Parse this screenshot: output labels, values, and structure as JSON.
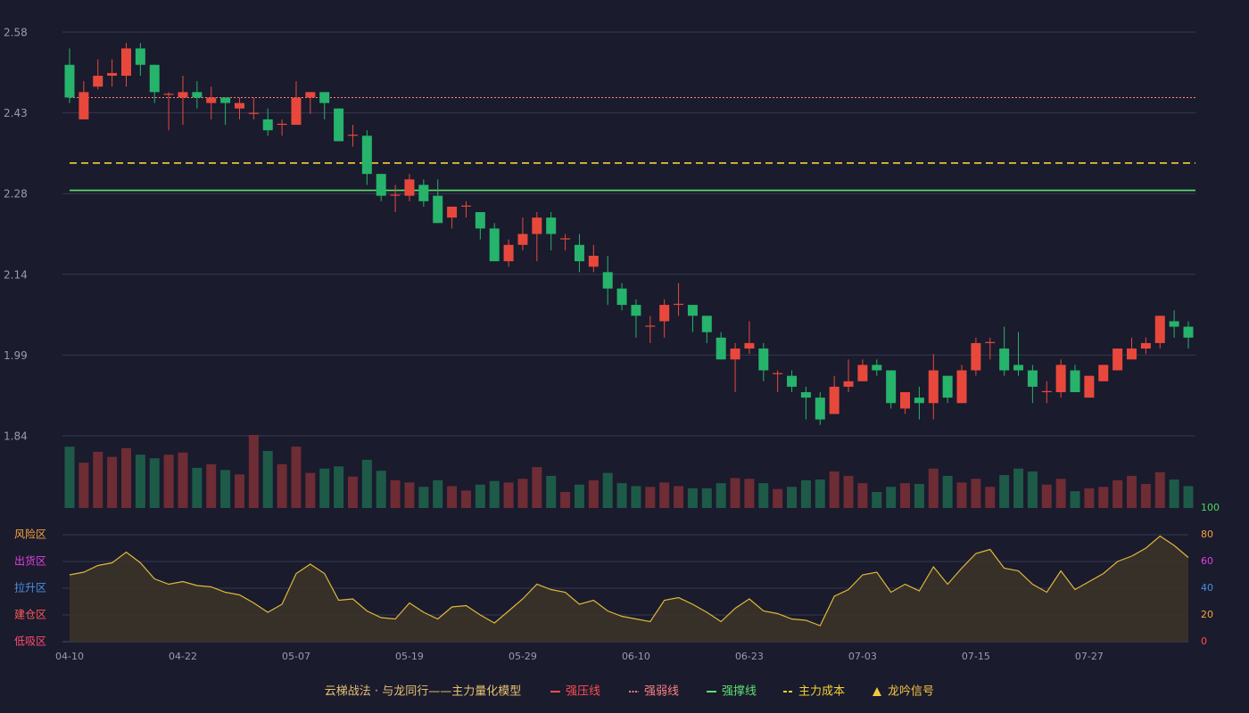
{
  "chart_data": [
    {
      "type": "candlestick",
      "title": "云梯战法 · 与龙同行——主力量化模型",
      "categories": [
        "04-10",
        null,
        null,
        null,
        null,
        null,
        null,
        null,
        "04-22",
        null,
        null,
        null,
        null,
        null,
        null,
        null,
        "05-07",
        null,
        null,
        null,
        null,
        null,
        null,
        null,
        "05-19",
        null,
        null,
        null,
        null,
        null,
        null,
        null,
        "05-29",
        null,
        null,
        null,
        null,
        null,
        null,
        null,
        "06-10",
        null,
        null,
        null,
        null,
        null,
        null,
        null,
        "06-23",
        null,
        null,
        null,
        null,
        null,
        null,
        null,
        "07-03",
        null,
        null,
        null,
        null,
        null,
        null,
        null,
        "07-15",
        null,
        null,
        null,
        null,
        null,
        null,
        null,
        "07-27",
        null,
        null,
        null,
        null,
        null,
        null,
        null
      ],
      "open": [
        2.52,
        2.42,
        2.48,
        2.5,
        2.5,
        2.55,
        2.52,
        2.465,
        2.46,
        2.47,
        2.45,
        2.46,
        2.44,
        2.43,
        2.42,
        2.41,
        2.41,
        2.46,
        2.47,
        2.44,
        2.39,
        2.39,
        2.32,
        2.28,
        2.28,
        2.3,
        2.28,
        2.24,
        2.26,
        2.25,
        2.22,
        2.16,
        2.19,
        2.21,
        2.24,
        2.2,
        2.19,
        2.15,
        2.14,
        2.11,
        2.08,
        2.04,
        2.05,
        2.08,
        2.08,
        2.06,
        2.02,
        1.98,
        2.0,
        2.0,
        1.953,
        1.95,
        1.92,
        1.91,
        1.88,
        1.93,
        1.94,
        1.97,
        1.96,
        1.89,
        1.91,
        1.9,
        1.95,
        1.9,
        1.96,
        2.01,
        2.0,
        1.97,
        1.96,
        1.92,
        1.92,
        1.96,
        1.91,
        1.94,
        1.96,
        1.98,
        2.0,
        2.01,
        2.05,
        2.04
      ],
      "high": [
        2.55,
        2.49,
        2.53,
        2.53,
        2.56,
        2.56,
        2.52,
        2.47,
        2.5,
        2.49,
        2.48,
        2.46,
        2.46,
        2.46,
        2.44,
        2.42,
        2.49,
        2.47,
        2.47,
        2.44,
        2.41,
        2.4,
        2.32,
        2.3,
        2.32,
        2.31,
        2.31,
        2.26,
        2.27,
        2.25,
        2.23,
        2.2,
        2.24,
        2.25,
        2.25,
        2.21,
        2.21,
        2.19,
        2.17,
        2.12,
        2.09,
        2.06,
        2.09,
        2.12,
        2.08,
        2.06,
        2.03,
        2.01,
        2.05,
        2.01,
        1.96,
        1.96,
        1.93,
        1.92,
        1.95,
        1.98,
        1.98,
        1.98,
        1.96,
        1.92,
        1.93,
        1.99,
        1.95,
        1.97,
        2.02,
        2.02,
        2.04,
        2.03,
        1.97,
        1.94,
        1.98,
        1.97,
        1.95,
        1.97,
        2.0,
        2.02,
        2.02,
        2.06,
        2.07,
        2.05
      ],
      "low": [
        2.45,
        2.42,
        2.475,
        2.48,
        2.48,
        2.5,
        2.45,
        2.4,
        2.41,
        2.44,
        2.42,
        2.41,
        2.42,
        2.42,
        2.39,
        2.39,
        2.41,
        2.43,
        2.42,
        2.38,
        2.37,
        2.3,
        2.27,
        2.25,
        2.27,
        2.26,
        2.23,
        2.22,
        2.24,
        2.2,
        2.16,
        2.15,
        2.18,
        2.16,
        2.18,
        2.18,
        2.14,
        2.14,
        2.08,
        2.07,
        2.02,
        2.01,
        2.02,
        2.06,
        2.03,
        2.01,
        1.98,
        1.92,
        1.99,
        1.94,
        1.92,
        1.92,
        1.87,
        1.86,
        1.88,
        1.92,
        1.94,
        1.95,
        1.89,
        1.88,
        1.87,
        1.87,
        1.9,
        1.9,
        1.95,
        1.98,
        1.95,
        1.95,
        1.9,
        1.9,
        1.91,
        1.92,
        1.91,
        1.94,
        1.96,
        1.98,
        1.99,
        2.0,
        2.02,
        2.0
      ],
      "close": [
        2.46,
        2.47,
        2.5,
        2.505,
        2.55,
        2.52,
        2.47,
        2.467,
        2.47,
        2.46,
        2.46,
        2.45,
        2.45,
        2.432,
        2.4,
        2.412,
        2.46,
        2.47,
        2.45,
        2.38,
        2.392,
        2.32,
        2.28,
        2.282,
        2.31,
        2.27,
        2.23,
        2.26,
        2.262,
        2.22,
        2.16,
        2.19,
        2.21,
        2.24,
        2.21,
        2.202,
        2.16,
        2.17,
        2.11,
        2.08,
        2.06,
        2.042,
        2.08,
        2.082,
        2.06,
        2.03,
        1.98,
        2.0,
        2.01,
        1.96,
        1.955,
        1.93,
        1.91,
        1.87,
        1.93,
        1.94,
        1.97,
        1.96,
        1.9,
        1.92,
        1.9,
        1.96,
        1.91,
        1.96,
        2.01,
        2.012,
        1.96,
        1.96,
        1.93,
        1.922,
        1.97,
        1.92,
        1.95,
        1.97,
        2.0,
        2.0,
        2.01,
        2.06,
        2.04,
        2.02
      ],
      "up_color": "#e8483c",
      "down_color": "#26b36b",
      "ylim": [
        1.84,
        2.58
      ],
      "yticks": [
        2.58,
        {
          "value": 2.432,
          "label": "2.43"
        },
        {
          "value": 2.284,
          "label": "2.28"
        },
        {
          "value": 2.136,
          "label": "2.14"
        },
        {
          "value": 1.988,
          "label": "1.99"
        },
        1.84
      ],
      "grid": true,
      "overlays": [
        {
          "name": "强压线",
          "color": "#ff4d4d",
          "style": "solid"
        },
        {
          "name": "强弱线",
          "color": "#ff8080",
          "style": "dotted",
          "value": 2.46
        },
        {
          "name": "强撑线",
          "color": "#5ee06e",
          "style": "solid",
          "value": 2.29
        },
        {
          "name": "主力成本",
          "color": "#f5d033",
          "style": "dashed",
          "value": 2.34
        },
        {
          "name": "龙吟信号",
          "color": "#f5c542",
          "style": "triangle"
        }
      ]
    },
    {
      "type": "volume",
      "values": [
        84,
        62,
        77,
        70,
        82,
        73,
        68,
        73,
        76,
        55,
        60,
        52,
        46,
        100,
        78,
        60,
        84,
        48,
        54,
        57,
        43,
        66,
        51,
        38,
        35,
        29,
        38,
        30,
        24,
        32,
        37,
        35,
        40,
        56,
        44,
        22,
        32,
        38,
        48,
        34,
        30,
        29,
        35,
        30,
        27,
        27,
        34,
        41,
        40,
        34,
        26,
        29,
        38,
        39,
        50,
        44,
        34,
        22,
        29,
        34,
        33,
        54,
        44,
        35,
        40,
        29,
        45,
        54,
        50,
        32,
        40,
        23,
        27,
        29,
        38,
        44,
        33,
        49,
        39,
        30
      ],
      "up_color": "#6e2c34",
      "down_color": "#1e5a48",
      "ylim": [
        0,
        100
      ]
    },
    {
      "type": "area",
      "values": [
        50,
        52,
        57,
        59,
        67,
        59,
        47,
        43,
        45,
        42,
        41,
        37,
        35,
        29,
        22,
        28,
        51,
        58,
        51,
        31,
        32,
        23,
        18,
        17,
        29,
        22,
        17,
        26,
        27,
        20,
        14,
        23,
        32,
        43,
        39,
        37,
        28,
        31,
        23,
        19,
        17,
        15,
        31,
        33,
        28,
        22,
        15,
        25,
        32,
        23,
        21,
        17,
        16,
        12,
        34,
        39,
        50,
        52,
        37,
        43,
        38,
        56,
        43,
        55,
        66,
        69,
        55,
        53,
        43,
        37,
        53,
        39,
        45,
        51,
        60,
        64,
        70,
        79,
        72,
        63
      ],
      "color": "#e0b83a",
      "fill": "#3a3328",
      "ylim": [
        0,
        100
      ],
      "yticks": [
        0,
        20,
        40,
        60,
        80,
        100
      ],
      "ytick_colors": [
        "#ff4d4d",
        "#f5a340",
        "#4a90e2",
        "#e040e0",
        "#f5a340",
        "#4cd964"
      ],
      "zones": [
        {
          "label": "风险区",
          "value": 80,
          "color": "#f5a340"
        },
        {
          "label": "出货区",
          "value": 60,
          "color": "#e040e0"
        },
        {
          "label": "拉升区",
          "value": 40,
          "color": "#4a90e2"
        },
        {
          "label": "建仓区",
          "value": 20,
          "color": "#ff5a5a"
        },
        {
          "label": "低吸区",
          "value": 0,
          "color": "#ff4d6a"
        }
      ]
    }
  ]
}
